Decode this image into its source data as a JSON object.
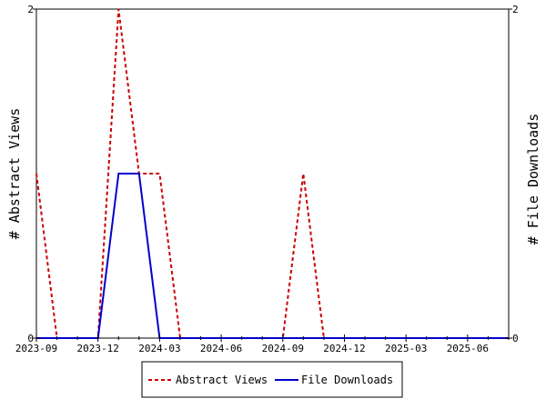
{
  "chart_data": {
    "type": "line",
    "title": "",
    "xlabel": "",
    "y_left_label": "# Abstract Views",
    "y_right_label": "# File Downloads",
    "x_range": [
      "2023-09",
      "2025-08"
    ],
    "y_left_range": [
      0,
      2
    ],
    "y_right_range": [
      0,
      2
    ],
    "y_left_ticks": [
      "0",
      "2"
    ],
    "y_right_ticks": [
      "0",
      "2"
    ],
    "x_ticks": [
      "2023-09",
      "2023-12",
      "2024-03",
      "2024-06",
      "2024-09",
      "2024-12",
      "2025-03",
      "2025-06"
    ],
    "grid": false,
    "legend_position": "bottom-center",
    "x": [
      "2023-09",
      "2023-10",
      "2023-11",
      "2023-12",
      "2024-01",
      "2024-02",
      "2024-03",
      "2024-04",
      "2024-05",
      "2024-06",
      "2024-07",
      "2024-08",
      "2024-09",
      "2024-10",
      "2024-11",
      "2024-12",
      "2025-01",
      "2025-02",
      "2025-03",
      "2025-04",
      "2025-05",
      "2025-06",
      "2025-07",
      "2025-08"
    ],
    "series": [
      {
        "name": "Abstract Views",
        "axis": "left",
        "color": "#cc0000",
        "dash": true,
        "values": [
          1,
          0,
          0,
          0,
          2,
          1,
          1,
          0,
          0,
          0,
          0,
          0,
          0,
          1,
          0,
          0,
          0,
          0,
          0,
          0,
          0,
          0,
          0,
          0
        ]
      },
      {
        "name": "File Downloads",
        "axis": "right",
        "color": "#0000cc",
        "dash": false,
        "values": [
          0,
          0,
          0,
          0,
          1,
          1,
          0,
          0,
          0,
          0,
          0,
          0,
          0,
          0,
          0,
          0,
          0,
          0,
          0,
          0,
          0,
          0,
          0,
          0
        ]
      }
    ]
  }
}
